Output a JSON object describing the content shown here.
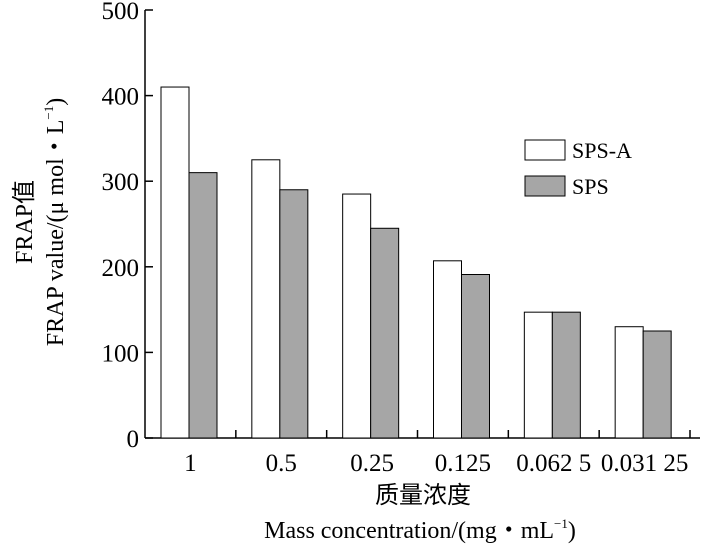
{
  "chart_data": {
    "type": "bar",
    "categories": [
      "1",
      "0.5",
      "0.25",
      "0.125",
      "0.062 5",
      "0.031 25"
    ],
    "series": [
      {
        "name": "SPS-A",
        "values": [
          410,
          325,
          285,
          207,
          147,
          130
        ],
        "color": "#ffffff"
      },
      {
        "name": "SPS",
        "values": [
          310,
          290,
          245,
          191,
          147,
          125
        ],
        "color": "#a6a6a6"
      }
    ],
    "ylim": [
      0,
      500
    ],
    "yticks": [
      0,
      100,
      200,
      300,
      400,
      500
    ],
    "ylabel_cn": "FRAP值",
    "ylabel_en": "FRAP value/(μ mol・L",
    "ylabel_sup": "−1",
    "ylabel_end": ")",
    "xlabel_cn": "质量浓度",
    "xlabel_en": "Mass concentration/(mg・mL",
    "xlabel_sup": "−1",
    "xlabel_end": ")",
    "legend_position": "top-right",
    "grid": false
  }
}
